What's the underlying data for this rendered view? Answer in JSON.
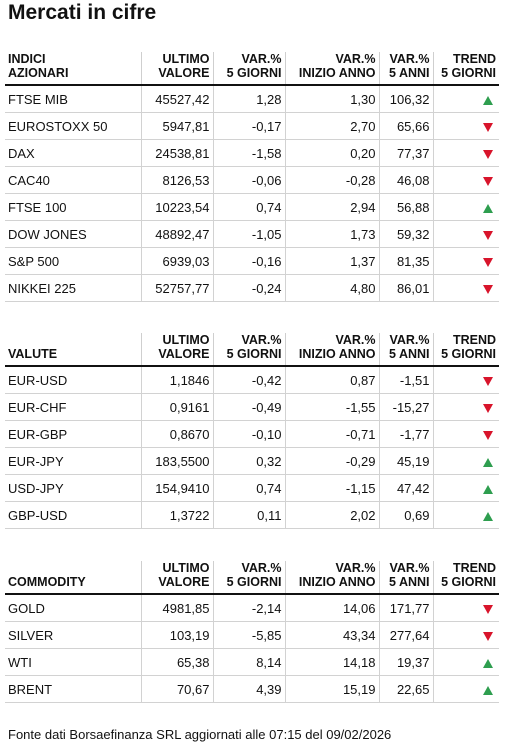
{
  "title": "Mercati in cifre",
  "headers": {
    "ultimo_1": "ULTIMO",
    "ultimo_2": "VALORE",
    "var5_1": "VAR.%",
    "var5_2": "5 GIORNI",
    "varanno_1": "VAR.%",
    "varanno_2": "INIZIO ANNO",
    "var5a_1": "VAR.%",
    "var5a_2": "5 ANNI",
    "trend_1": "TREND",
    "trend_2": "5 GIORNI"
  },
  "sections": [
    {
      "title_1": "INDICI",
      "title_2": "AZIONARI",
      "rows": [
        {
          "name": "FTSE MIB",
          "value": "45527,42",
          "var5d": "1,28",
          "varytd": "1,30",
          "var5y": "106,32",
          "trend": "up"
        },
        {
          "name": "EUROSTOXX 50",
          "value": "5947,81",
          "var5d": "-0,17",
          "varytd": "2,70",
          "var5y": "65,66",
          "trend": "down"
        },
        {
          "name": "DAX",
          "value": "24538,81",
          "var5d": "-1,58",
          "varytd": "0,20",
          "var5y": "77,37",
          "trend": "down"
        },
        {
          "name": "CAC40",
          "value": "8126,53",
          "var5d": "-0,06",
          "varytd": "-0,28",
          "var5y": "46,08",
          "trend": "down"
        },
        {
          "name": "FTSE 100",
          "value": "10223,54",
          "var5d": "0,74",
          "varytd": "2,94",
          "var5y": "56,88",
          "trend": "up"
        },
        {
          "name": "DOW JONES",
          "value": "48892,47",
          "var5d": "-1,05",
          "varytd": "1,73",
          "var5y": "59,32",
          "trend": "down"
        },
        {
          "name": "S&P 500",
          "value": "6939,03",
          "var5d": "-0,16",
          "varytd": "1,37",
          "var5y": "81,35",
          "trend": "down"
        },
        {
          "name": "NIKKEI 225",
          "value": "52757,77",
          "var5d": "-0,24",
          "varytd": "4,80",
          "var5y": "86,01",
          "trend": "down"
        }
      ]
    },
    {
      "title_1": "",
      "title_2": "VALUTE",
      "rows": [
        {
          "name": "EUR-USD",
          "value": "1,1846",
          "var5d": "-0,42",
          "varytd": "0,87",
          "var5y": "-1,51",
          "trend": "down"
        },
        {
          "name": "EUR-CHF",
          "value": "0,9161",
          "var5d": "-0,49",
          "varytd": "-1,55",
          "var5y": "-15,27",
          "trend": "down"
        },
        {
          "name": "EUR-GBP",
          "value": "0,8670",
          "var5d": "-0,10",
          "varytd": "-0,71",
          "var5y": "-1,77",
          "trend": "down"
        },
        {
          "name": "EUR-JPY",
          "value": "183,5500",
          "var5d": "0,32",
          "varytd": "-0,29",
          "var5y": "45,19",
          "trend": "up"
        },
        {
          "name": "USD-JPY",
          "value": "154,9410",
          "var5d": "0,74",
          "varytd": "-1,15",
          "var5y": "47,42",
          "trend": "up"
        },
        {
          "name": "GBP-USD",
          "value": "1,3722",
          "var5d": "0,11",
          "varytd": "2,02",
          "var5y": "0,69",
          "trend": "up"
        }
      ]
    },
    {
      "title_1": "",
      "title_2": "COMMODITY",
      "rows": [
        {
          "name": "GOLD",
          "value": "4981,85",
          "var5d": "-2,14",
          "varytd": "14,06",
          "var5y": "171,77",
          "trend": "down"
        },
        {
          "name": "SILVER",
          "value": "103,19",
          "var5d": "-5,85",
          "varytd": "43,34",
          "var5y": "277,64",
          "trend": "down"
        },
        {
          "name": "WTI",
          "value": "65,38",
          "var5d": "8,14",
          "varytd": "14,18",
          "var5y": "19,37",
          "trend": "up"
        },
        {
          "name": "BRENT",
          "value": "70,67",
          "var5d": "4,39",
          "varytd": "15,19",
          "var5y": "22,65",
          "trend": "up"
        }
      ]
    }
  ],
  "footer": "Fonte dati Borsaefinanza SRL aggiornati alle 07:15 del 09/02/2026",
  "colors": {
    "up": "#2e9e4f",
    "down": "#d8142b"
  }
}
